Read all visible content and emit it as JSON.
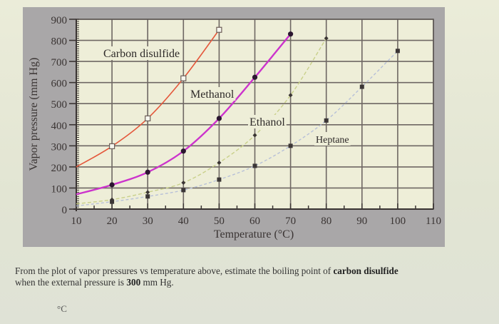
{
  "chart_data": {
    "type": "line",
    "title": "",
    "xlabel": "Temperature (°C)",
    "ylabel": "Vapor pressure (mm Hg)",
    "xlim": [
      10,
      110
    ],
    "ylim": [
      0,
      900
    ],
    "x_ticks": [
      10,
      20,
      30,
      40,
      50,
      60,
      70,
      80,
      90,
      100,
      110
    ],
    "y_ticks": [
      0,
      100,
      200,
      300,
      400,
      500,
      600,
      700,
      800,
      900
    ],
    "grid": true,
    "legend": "inline labels",
    "series": [
      {
        "name": "Carbon disulfide",
        "color": "#e4573b",
        "marker": "open-square",
        "x": [
          10,
          20,
          30,
          40,
          50
        ],
        "values": [
          200,
          298,
          430,
          620,
          850
        ]
      },
      {
        "name": "Methanol",
        "color": "#cc33cc",
        "marker": "filled-circle",
        "x": [
          10,
          20,
          30,
          40,
          50,
          60,
          70
        ],
        "values": [
          70,
          115,
          175,
          275,
          430,
          625,
          830
        ]
      },
      {
        "name": "Ethanol",
        "color": "#c9d08a",
        "marker": "diamond",
        "x": [
          10,
          20,
          30,
          40,
          50,
          60,
          70,
          80
        ],
        "values": [
          25,
          45,
          80,
          125,
          220,
          350,
          540,
          810
        ]
      },
      {
        "name": "Heptane",
        "color": "#b7c0d8",
        "marker": "filled-square",
        "x": [
          10,
          20,
          30,
          40,
          50,
          60,
          70,
          80,
          90,
          100
        ],
        "values": [
          15,
          35,
          60,
          90,
          140,
          205,
          300,
          420,
          580,
          750
        ]
      }
    ],
    "annotations": [
      "Carbon disulfide",
      "Methanol",
      "Ethanol",
      "Heptane"
    ]
  },
  "question": {
    "text_before": "From the plot of vapor pressures vs temperature above, estimate the boiling point of ",
    "bold_substance": "carbon disulfide",
    "text_middle": " when the external pressure is ",
    "bold_pressure": "300",
    "text_after": " mm Hg.",
    "answer_unit": "°C"
  }
}
